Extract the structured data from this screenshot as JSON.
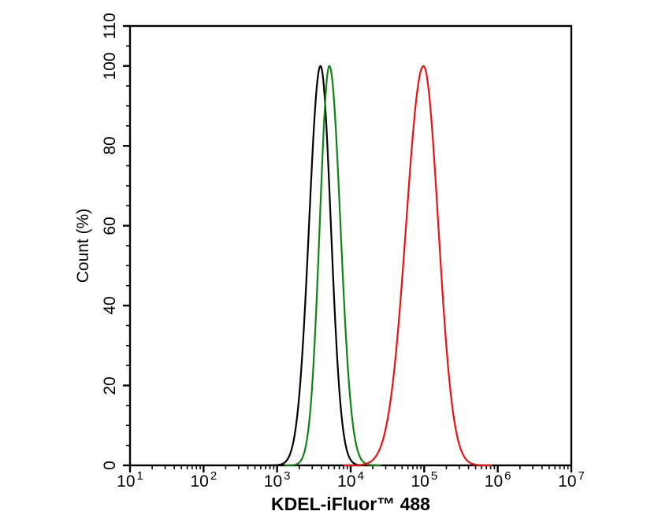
{
  "figure": {
    "background_color": "#ffffff",
    "axis_color": "#000000"
  },
  "chart_data": {
    "type": "line",
    "variant": "flow-cytometry-overlay-histogram",
    "title": "",
    "xlabel": "KDEL-iFluor™ 488",
    "ylabel": "Count (%)",
    "x_scale": "log10",
    "x_log_range": [
      1,
      7
    ],
    "x_tick_base": "10",
    "x_tick_exponents": [
      "1",
      "2",
      "3",
      "4",
      "5",
      "6",
      "7"
    ],
    "x_minor_multiples": [
      2,
      3,
      4,
      5,
      6,
      7,
      8,
      9
    ],
    "ylim": [
      0,
      110
    ],
    "y_major_ticks": [
      0,
      20,
      40,
      60,
      80,
      100,
      110
    ],
    "y_minor_step": 5,
    "grid": false,
    "series": [
      {
        "name": "black",
        "color": "#000000",
        "peak_log10": 3.59,
        "peak_x_value": 3900,
        "sigma_left_log10": 0.155,
        "sigma_right_log10": 0.14,
        "peak_height_pct": 100
      },
      {
        "name": "green",
        "color": "#128212",
        "peak_log10": 3.71,
        "peak_x_value": 5100,
        "sigma_left_log10": 0.13,
        "sigma_right_log10": 0.15,
        "peak_height_pct": 100
      },
      {
        "name": "red",
        "color": "#ee1111",
        "peak_log10": 4.99,
        "peak_x_value": 98000,
        "sigma_left_log10": 0.235,
        "sigma_right_log10": 0.2,
        "peak_height_pct": 100
      }
    ]
  }
}
